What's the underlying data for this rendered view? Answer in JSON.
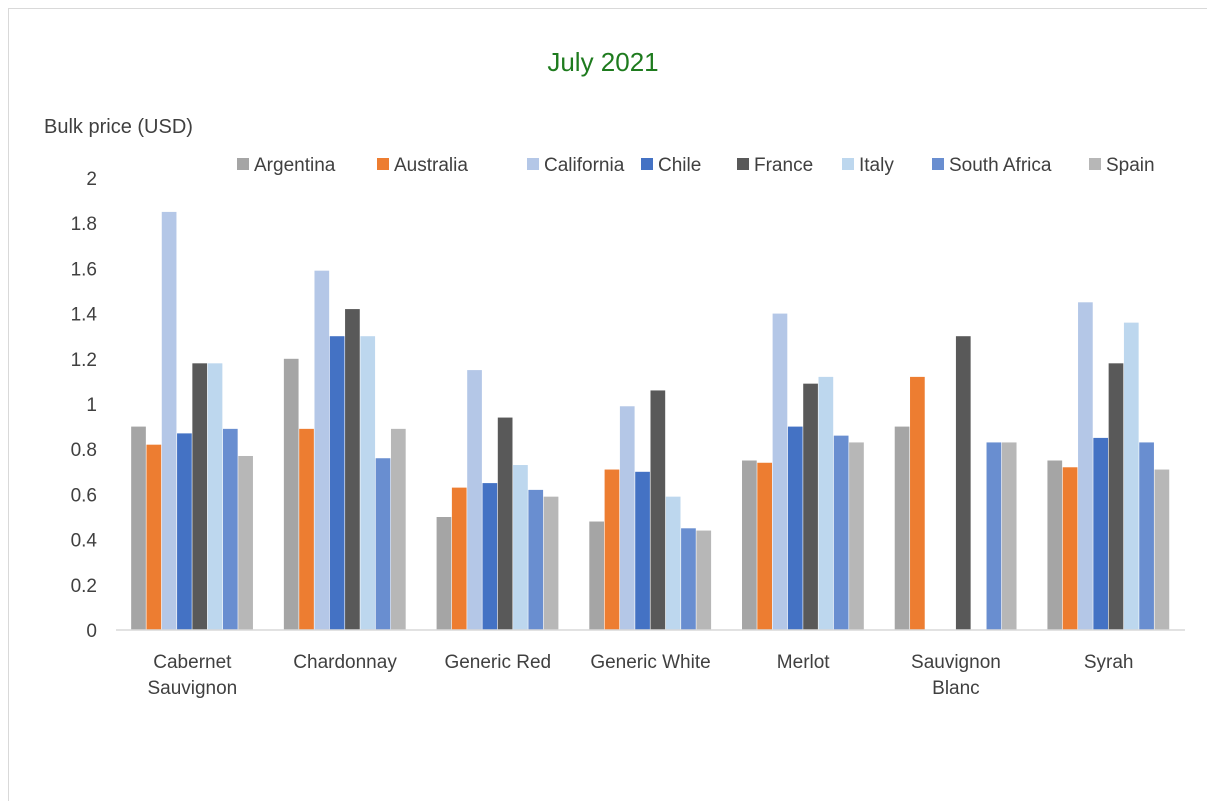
{
  "chart_data": {
    "type": "bar",
    "title": "July 2021",
    "ylabel": "Bulk price (USD)",
    "xlabel": "",
    "ylim": [
      0,
      2
    ],
    "yticks": [
      "0",
      "0.2",
      "0.4",
      "0.6",
      "0.8",
      "1",
      "1.2",
      "1.4",
      "1.6",
      "1.8",
      "2"
    ],
    "legend_position": "top",
    "grid": false,
    "categories": [
      [
        "Cabernet",
        "Sauvignon"
      ],
      [
        "Chardonnay"
      ],
      [
        "Generic Red"
      ],
      [
        "Generic White"
      ],
      [
        "Merlot"
      ],
      [
        "Sauvignon",
        "Blanc"
      ],
      [
        "Syrah"
      ]
    ],
    "series": [
      {
        "name": "Argentina",
        "color": "#a5a5a5",
        "values": [
          0.9,
          1.2,
          0.5,
          0.48,
          0.75,
          0.9,
          0.75
        ]
      },
      {
        "name": "Australia",
        "color": "#ed7d31",
        "values": [
          0.82,
          0.89,
          0.63,
          0.71,
          0.74,
          1.12,
          0.72
        ]
      },
      {
        "name": "California",
        "color": "#b4c7e7",
        "values": [
          1.85,
          1.59,
          1.15,
          0.99,
          1.4,
          null,
          1.45
        ]
      },
      {
        "name": "Chile",
        "color": "#4472c4",
        "values": [
          0.87,
          1.3,
          0.65,
          0.7,
          0.9,
          null,
          0.85
        ]
      },
      {
        "name": "France",
        "color": "#595959",
        "values": [
          1.18,
          1.42,
          0.94,
          1.06,
          1.09,
          1.3,
          1.18
        ]
      },
      {
        "name": "Italy",
        "color": "#bdd7ee",
        "values": [
          1.18,
          1.3,
          0.73,
          0.59,
          1.12,
          null,
          1.36
        ]
      },
      {
        "name": "South Africa",
        "color": "#698ed0",
        "values": [
          0.89,
          0.76,
          0.62,
          0.45,
          0.86,
          0.83,
          0.83
        ]
      },
      {
        "name": "Spain",
        "color": "#b7b7b7",
        "values": [
          0.77,
          0.89,
          0.59,
          0.44,
          0.83,
          0.83,
          0.71
        ]
      }
    ]
  }
}
